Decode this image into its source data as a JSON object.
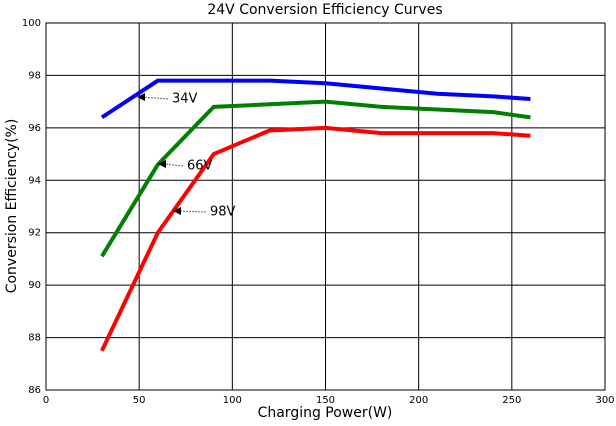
{
  "chart_data": {
    "type": "line",
    "title": "24V Conversion Efficiency Curves",
    "x_label": "Charging Power(W)",
    "y_label": "Conversion Efficiency(%)",
    "x": [
      30,
      60,
      90,
      120,
      150,
      180,
      210,
      240,
      260
    ],
    "series": [
      {
        "name": "34V",
        "color": "#0000ff",
        "values": [
          96.4,
          97.8,
          97.8,
          97.8,
          97.7,
          97.5,
          97.3,
          97.2,
          97.1
        ]
      },
      {
        "name": "66V",
        "color": "#008000",
        "values": [
          91.1,
          94.6,
          96.8,
          96.9,
          97.0,
          96.8,
          96.7,
          96.6,
          96.4
        ]
      },
      {
        "name": "98V",
        "color": "#ff0000",
        "values": [
          87.5,
          92.0,
          95.0,
          95.9,
          96.0,
          95.8,
          95.8,
          95.8,
          95.7
        ]
      }
    ],
    "xlim": [
      0,
      300
    ],
    "xticks": [
      0,
      50,
      100,
      150,
      200,
      250,
      300
    ],
    "ylim": [
      86,
      100
    ],
    "yticks": [
      86,
      88,
      90,
      92,
      94,
      96,
      98,
      100
    ],
    "grid": true
  }
}
